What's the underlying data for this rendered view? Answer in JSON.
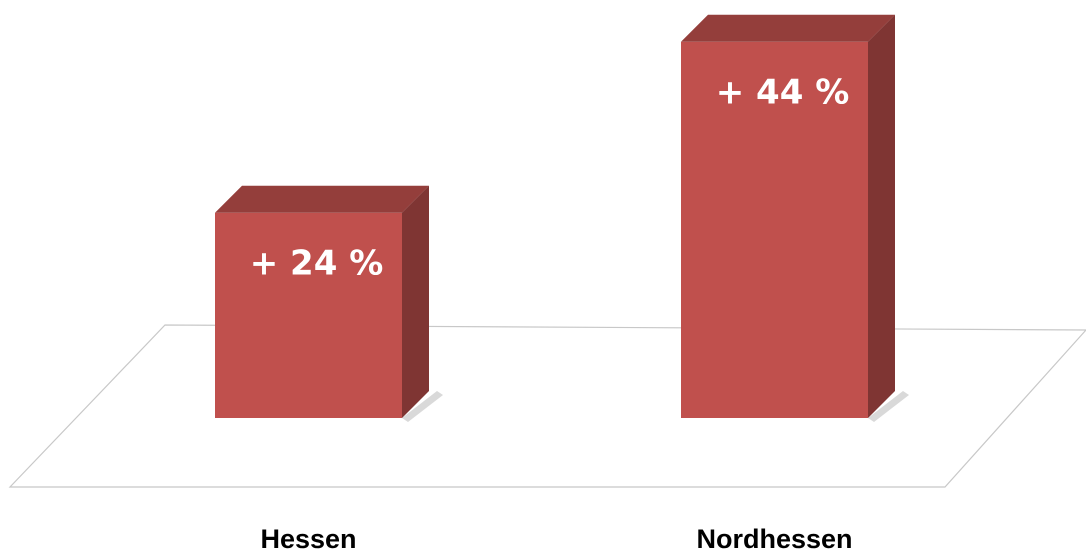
{
  "chart_data": {
    "type": "bar3d",
    "categories": [
      "Hessen",
      "Nordhessen"
    ],
    "values": [
      24,
      44
    ],
    "value_labels": [
      "+ 24 %",
      "+ 44 %"
    ],
    "color": "#c0504d"
  }
}
